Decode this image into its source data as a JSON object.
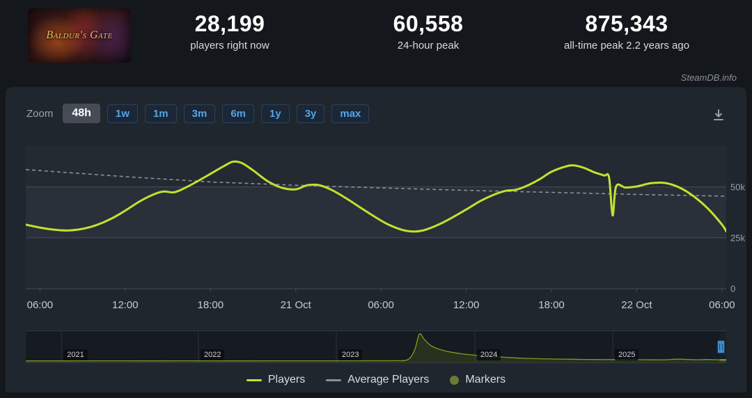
{
  "colors": {
    "page_bg": "#14171c",
    "panel_bg": "#20262e",
    "plot_bg": "#242a32",
    "plot_band": "#2a3039",
    "grid_line": "#454c56",
    "accent_blue": "#53a4e9",
    "players_line": "#c3e22d",
    "average_line": "#87919b",
    "markers_dot": "#6c7a33"
  },
  "header": {
    "game_title": "Baldur's Gate",
    "stats": [
      {
        "value": "28,199",
        "label": "players right now"
      },
      {
        "value": "60,558",
        "label": "24-hour peak"
      },
      {
        "value": "875,343",
        "label": "all-time peak 2.2 years ago"
      }
    ]
  },
  "watermark": "SteamDB.info",
  "toolbar": {
    "zoom_label": "Zoom",
    "selected": "48h",
    "ranges": [
      "48h",
      "1w",
      "1m",
      "3m",
      "6m",
      "1y",
      "3y",
      "max"
    ]
  },
  "chart_data": {
    "type": "line",
    "xlim": [
      -1,
      48.3
    ],
    "ylim": [
      0,
      70000
    ],
    "y_ticks": [
      {
        "v": 50000,
        "label": "50k"
      },
      {
        "v": 25000,
        "label": "25k"
      },
      {
        "v": 0,
        "label": "0"
      }
    ],
    "x_ticks": [
      {
        "t": 0,
        "label": "06:00"
      },
      {
        "t": 6,
        "label": "12:00"
      },
      {
        "t": 12,
        "label": "18:00"
      },
      {
        "t": 18,
        "label": "21 Oct"
      },
      {
        "t": 24,
        "label": "06:00"
      },
      {
        "t": 30,
        "label": "12:00"
      },
      {
        "t": 36,
        "label": "18:00"
      },
      {
        "t": 42,
        "label": "22 Oct"
      },
      {
        "t": 48,
        "label": "06:00"
      }
    ],
    "series": [
      {
        "name": "Players",
        "color": "#c3e22d",
        "points": [
          [
            -1,
            31500
          ],
          [
            0,
            30000
          ],
          [
            1,
            29000
          ],
          [
            2,
            28600
          ],
          [
            3,
            29400
          ],
          [
            4,
            31300
          ],
          [
            5,
            34300
          ],
          [
            6,
            38300
          ],
          [
            7,
            42800
          ],
          [
            8,
            46300
          ],
          [
            8.7,
            47700
          ],
          [
            9.4,
            47300
          ],
          [
            10,
            48800
          ],
          [
            11,
            52400
          ],
          [
            12,
            56400
          ],
          [
            13,
            60400
          ],
          [
            13.6,
            62400
          ],
          [
            14.2,
            61700
          ],
          [
            15,
            58100
          ],
          [
            16,
            52900
          ],
          [
            17,
            49600
          ],
          [
            18,
            48800
          ],
          [
            18.8,
            50800
          ],
          [
            19.6,
            50900
          ],
          [
            20.5,
            48600
          ],
          [
            21.5,
            44600
          ],
          [
            22.5,
            40100
          ],
          [
            23.5,
            35600
          ],
          [
            24.5,
            31600
          ],
          [
            25.5,
            28900
          ],
          [
            26.3,
            28100
          ],
          [
            27,
            28700
          ],
          [
            28,
            31300
          ],
          [
            29,
            34900
          ],
          [
            30,
            38900
          ],
          [
            31,
            43100
          ],
          [
            32,
            46300
          ],
          [
            32.8,
            48100
          ],
          [
            33.5,
            48600
          ],
          [
            34.3,
            50600
          ],
          [
            35.2,
            53900
          ],
          [
            36,
            57400
          ],
          [
            37,
            60000
          ],
          [
            37.6,
            60550
          ],
          [
            38.3,
            59300
          ],
          [
            39,
            57200
          ],
          [
            39.7,
            55600
          ],
          [
            40.05,
            54600
          ],
          [
            40.3,
            36000
          ],
          [
            40.55,
            50300
          ],
          [
            41.2,
            49700
          ],
          [
            42,
            50200
          ],
          [
            43,
            51800
          ],
          [
            44,
            51900
          ],
          [
            45,
            49700
          ],
          [
            46,
            45400
          ],
          [
            47,
            39400
          ],
          [
            48,
            31500
          ],
          [
            48.3,
            28199
          ]
        ]
      },
      {
        "name": "Average Players",
        "color": "#87919b",
        "dash": "5 4",
        "points": [
          [
            -1,
            58500
          ],
          [
            6,
            55000
          ],
          [
            12,
            52400
          ],
          [
            18,
            50800
          ],
          [
            24,
            49500
          ],
          [
            30,
            48300
          ],
          [
            36,
            47300
          ],
          [
            42,
            46300
          ],
          [
            48.3,
            45400
          ]
        ]
      }
    ]
  },
  "navigator": {
    "peak_value": 875343,
    "years": [
      {
        "label": "2021",
        "f": 0.051
      },
      {
        "label": "2022",
        "f": 0.2465
      },
      {
        "label": "2023",
        "f": 0.4433
      },
      {
        "label": "2024",
        "f": 0.6411
      },
      {
        "label": "2025",
        "f": 0.838
      }
    ],
    "selection": {
      "from_f": 0.9907,
      "to_f": 1.0
    },
    "points": [
      [
        0,
        0.008
      ],
      [
        0.06,
        0.008
      ],
      [
        0.12,
        0.009
      ],
      [
        0.18,
        0.008
      ],
      [
        0.24,
        0.009
      ],
      [
        0.3,
        0.008
      ],
      [
        0.36,
        0.009
      ],
      [
        0.42,
        0.011
      ],
      [
        0.47,
        0.012
      ],
      [
        0.5,
        0.013
      ],
      [
        0.525,
        0.016
      ],
      [
        0.545,
        0.05
      ],
      [
        0.555,
        0.4
      ],
      [
        0.562,
        1.0
      ],
      [
        0.569,
        0.8
      ],
      [
        0.578,
        0.58
      ],
      [
        0.59,
        0.44
      ],
      [
        0.605,
        0.34
      ],
      [
        0.625,
        0.26
      ],
      [
        0.645,
        0.21
      ],
      [
        0.665,
        0.17
      ],
      [
        0.685,
        0.14
      ],
      [
        0.705,
        0.11
      ],
      [
        0.73,
        0.09
      ],
      [
        0.755,
        0.078
      ],
      [
        0.78,
        0.068
      ],
      [
        0.81,
        0.06
      ],
      [
        0.84,
        0.056
      ],
      [
        0.865,
        0.06
      ],
      [
        0.885,
        0.05
      ],
      [
        0.9,
        0.046
      ],
      [
        0.915,
        0.052
      ],
      [
        0.93,
        0.072
      ],
      [
        0.945,
        0.062
      ],
      [
        0.958,
        0.052
      ],
      [
        0.972,
        0.058
      ],
      [
        0.985,
        0.05
      ],
      [
        1.0,
        0.046
      ]
    ]
  },
  "legend": {
    "items": [
      {
        "label": "Players",
        "swatch": "line",
        "color": "#c3e22d"
      },
      {
        "label": "Average Players",
        "swatch": "line",
        "color": "#87919b"
      },
      {
        "label": "Markers",
        "swatch": "circle",
        "color": "#6c7a33"
      }
    ]
  }
}
